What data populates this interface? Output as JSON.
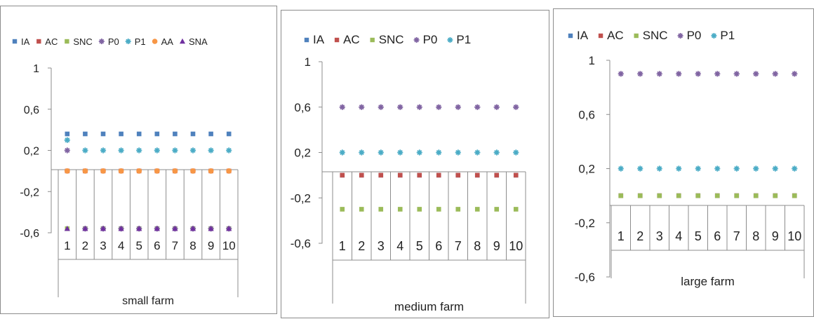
{
  "chart_data": [
    {
      "type": "scatter",
      "xlabel": "small farm",
      "categories": [
        "1",
        "2",
        "3",
        "4",
        "5",
        "6",
        "7",
        "8",
        "9",
        "10"
      ],
      "ylim": [
        -0.6,
        1
      ],
      "yticks": [
        "1",
        "0,6",
        "0,2",
        "-0,2",
        "-0,6"
      ],
      "ytick_values": [
        1,
        0.6,
        0.2,
        -0.2,
        -0.6
      ],
      "legend_position": "top",
      "series": [
        {
          "name": "IA",
          "color": "#4f81bd",
          "marker": "square",
          "values": [
            0.36,
            0.36,
            0.36,
            0.36,
            0.36,
            0.36,
            0.36,
            0.36,
            0.36,
            0.36
          ]
        },
        {
          "name": "AC",
          "color": "#c0504d",
          "marker": "square",
          "values": [
            0,
            0,
            0,
            0,
            0,
            0,
            0,
            0,
            0,
            0
          ]
        },
        {
          "name": "SNC",
          "color": "#9bbb59",
          "marker": "square",
          "values": [
            -0.56,
            -0.56,
            -0.56,
            -0.56,
            -0.56,
            -0.56,
            -0.56,
            -0.56,
            -0.56,
            -0.56
          ]
        },
        {
          "name": "P0",
          "color": "#8064a2",
          "marker": "star",
          "values": [
            0.2,
            -0.56,
            -0.56,
            -0.56,
            -0.56,
            -0.56,
            -0.56,
            -0.56,
            -0.56,
            -0.56
          ]
        },
        {
          "name": "P1",
          "color": "#4bacc6",
          "marker": "star",
          "values": [
            0.3,
            0.2,
            0.2,
            0.2,
            0.2,
            0.2,
            0.2,
            0.2,
            0.2,
            0.2
          ]
        },
        {
          "name": "AA",
          "color": "#f79646",
          "marker": "circle",
          "values": [
            0,
            0,
            0,
            0,
            0,
            0,
            0,
            0,
            0,
            0
          ]
        },
        {
          "name": "SNA",
          "color": "#7030a0",
          "marker": "triangle",
          "values": [
            -0.56,
            -0.56,
            -0.56,
            -0.56,
            -0.56,
            -0.56,
            -0.56,
            -0.56,
            -0.56,
            -0.56
          ]
        }
      ]
    },
    {
      "type": "scatter",
      "xlabel": "medium farm",
      "categories": [
        "1",
        "2",
        "3",
        "4",
        "5",
        "6",
        "7",
        "8",
        "9",
        "10"
      ],
      "ylim": [
        -0.6,
        1
      ],
      "yticks": [
        "1",
        "0,6",
        "0,2",
        "-0,2",
        "-0,6"
      ],
      "ytick_values": [
        1,
        0.6,
        0.2,
        -0.2,
        -0.6
      ],
      "legend_position": "top",
      "series": [
        {
          "name": "IA",
          "color": "#4f81bd",
          "marker": "square",
          "values": [
            0,
            0,
            0,
            0,
            0,
            0,
            0,
            0,
            0,
            0
          ]
        },
        {
          "name": "AC",
          "color": "#c0504d",
          "marker": "square",
          "values": [
            0,
            0,
            0,
            0,
            0,
            0,
            0,
            0,
            0,
            0
          ]
        },
        {
          "name": "SNC",
          "color": "#9bbb59",
          "marker": "square",
          "values": [
            -0.3,
            -0.3,
            -0.3,
            -0.3,
            -0.3,
            -0.3,
            -0.3,
            -0.3,
            -0.3,
            -0.3
          ]
        },
        {
          "name": "P0",
          "color": "#8064a2",
          "marker": "star",
          "values": [
            0.6,
            0.6,
            0.6,
            0.6,
            0.6,
            0.6,
            0.6,
            0.6,
            0.6,
            0.6
          ]
        },
        {
          "name": "P1",
          "color": "#4bacc6",
          "marker": "star",
          "values": [
            0.2,
            0.2,
            0.2,
            0.2,
            0.2,
            0.2,
            0.2,
            0.2,
            0.2,
            0.2
          ]
        }
      ]
    },
    {
      "type": "scatter",
      "xlabel": "large farm",
      "categories": [
        "1",
        "2",
        "3",
        "4",
        "5",
        "6",
        "7",
        "8",
        "9",
        "10"
      ],
      "ylim": [
        -0.6,
        1
      ],
      "yticks": [
        "1",
        "0,6",
        "0,2",
        "-0,2",
        "-0,6"
      ],
      "ytick_values": [
        1,
        0.6,
        0.2,
        -0.2,
        -0.6
      ],
      "legend_position": "top",
      "series": [
        {
          "name": "IA",
          "color": "#4f81bd",
          "marker": "square",
          "values": [
            0,
            0,
            0,
            0,
            0,
            0,
            0,
            0,
            0,
            0
          ]
        },
        {
          "name": "AC",
          "color": "#c0504d",
          "marker": "square",
          "values": [
            0,
            0,
            0,
            0,
            0,
            0,
            0,
            0,
            0,
            0
          ]
        },
        {
          "name": "SNC",
          "color": "#9bbb59",
          "marker": "square",
          "values": [
            0,
            0,
            0,
            0,
            0,
            0,
            0,
            0,
            0,
            0
          ]
        },
        {
          "name": "P0",
          "color": "#8064a2",
          "marker": "star",
          "values": [
            0.9,
            0.9,
            0.9,
            0.9,
            0.9,
            0.9,
            0.9,
            0.9,
            0.9,
            0.9
          ]
        },
        {
          "name": "P1",
          "color": "#4bacc6",
          "marker": "star",
          "values": [
            0.2,
            0.2,
            0.2,
            0.2,
            0.2,
            0.2,
            0.2,
            0.2,
            0.2,
            0.2
          ]
        }
      ]
    }
  ]
}
